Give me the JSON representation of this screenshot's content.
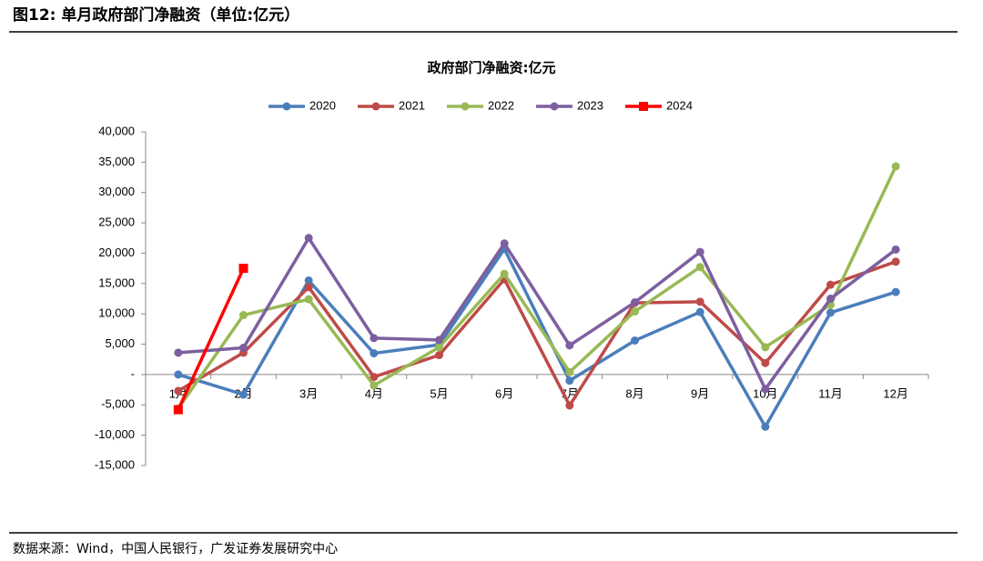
{
  "header": {
    "title": "图12: 单月政府部门净融资（单位:亿元）"
  },
  "chart_data": {
    "type": "line",
    "title": "政府部门净融资:亿元",
    "categories": [
      "1月",
      "2月",
      "3月",
      "4月",
      "5月",
      "6月",
      "7月",
      "8月",
      "9月",
      "10月",
      "11月",
      "12月"
    ],
    "series": [
      {
        "name": "2020",
        "color": "#4a7ebb",
        "marker": "circle",
        "values": [
          0,
          -3300,
          15500,
          3500,
          4900,
          20700,
          -1000,
          5600,
          10300,
          -8600,
          10200,
          13600
        ]
      },
      {
        "name": "2021",
        "color": "#be4b48",
        "marker": "circle",
        "values": [
          -2700,
          3600,
          14400,
          -400,
          3200,
          15700,
          -5100,
          11800,
          12000,
          1900,
          14800,
          18600
        ]
      },
      {
        "name": "2022",
        "color": "#98b954",
        "marker": "circle",
        "values": [
          -5600,
          9800,
          12400,
          -1800,
          4500,
          16600,
          400,
          10400,
          17700,
          4500,
          11500,
          34300
        ]
      },
      {
        "name": "2023",
        "color": "#7d5fa0",
        "marker": "circle",
        "values": [
          3600,
          4400,
          22500,
          6000,
          5700,
          21600,
          4800,
          11900,
          20200,
          -2400,
          12500,
          20600
        ]
      },
      {
        "name": "2024",
        "color": "#ff0000",
        "marker": "square",
        "values": [
          -5800,
          17500,
          null,
          null,
          null,
          null,
          null,
          null,
          null,
          null,
          null,
          null
        ]
      }
    ],
    "ylim": [
      -15000,
      40000
    ],
    "yticks": [
      {
        "value": -15000,
        "label": "-15,000"
      },
      {
        "value": -10000,
        "label": "-10,000"
      },
      {
        "value": -5000,
        "label": "-5,000"
      },
      {
        "value": 0,
        "label": "-"
      },
      {
        "value": 5000,
        "label": "5,000"
      },
      {
        "value": 10000,
        "label": "10,000"
      },
      {
        "value": 15000,
        "label": "15,000"
      },
      {
        "value": 20000,
        "label": "20,000"
      },
      {
        "value": 25000,
        "label": "25,000"
      },
      {
        "value": 30000,
        "label": "30,000"
      },
      {
        "value": 35000,
        "label": "35,000"
      },
      {
        "value": 40000,
        "label": "40,000"
      }
    ],
    "legend": "top",
    "grid": false
  },
  "footer": {
    "source": "数据来源：Wind，中国人民银行，广发证券发展研究中心"
  }
}
